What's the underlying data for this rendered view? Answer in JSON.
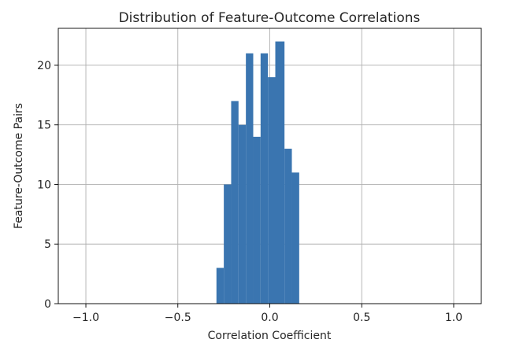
{
  "chart_data": {
    "type": "bar",
    "title": "Distribution of Feature-Outcome Correlations",
    "xlabel": "Correlation Coefficient",
    "ylabel": "Feature-Outcome Pairs",
    "xlim": [
      -1.15,
      1.15
    ],
    "ylim": [
      0,
      23.1
    ],
    "grid": true,
    "x_ticks": [
      {
        "value": -1.0,
        "label": "−1.0"
      },
      {
        "value": -0.5,
        "label": "−0.5"
      },
      {
        "value": 0.0,
        "label": "0.0"
      },
      {
        "value": 0.5,
        "label": "0.5"
      },
      {
        "value": 1.0,
        "label": "1.0"
      }
    ],
    "y_ticks": [
      {
        "value": 0,
        "label": "0"
      },
      {
        "value": 5,
        "label": "5"
      },
      {
        "value": 10,
        "label": "10"
      },
      {
        "value": 15,
        "label": "15"
      },
      {
        "value": 20,
        "label": "20"
      }
    ],
    "bins": [
      {
        "x0": -0.29,
        "x1": -0.25,
        "count": 3
      },
      {
        "x0": -0.25,
        "x1": -0.21,
        "count": 10
      },
      {
        "x0": -0.21,
        "x1": -0.17,
        "count": 17
      },
      {
        "x0": -0.17,
        "x1": -0.13,
        "count": 15
      },
      {
        "x0": -0.13,
        "x1": -0.09,
        "count": 21
      },
      {
        "x0": -0.09,
        "x1": -0.05,
        "count": 14
      },
      {
        "x0": -0.05,
        "x1": -0.01,
        "count": 21
      },
      {
        "x0": -0.01,
        "x1": 0.03,
        "count": 19
      },
      {
        "x0": 0.03,
        "x1": 0.08,
        "count": 22
      },
      {
        "x0": 0.08,
        "x1": 0.12,
        "count": 13
      },
      {
        "x0": 0.12,
        "x1": 0.16,
        "count": 11
      }
    ],
    "colors": {
      "bar": "#3a75b0",
      "grid": "#b0b0b0",
      "axis": "#000000",
      "text": "#262626"
    }
  }
}
